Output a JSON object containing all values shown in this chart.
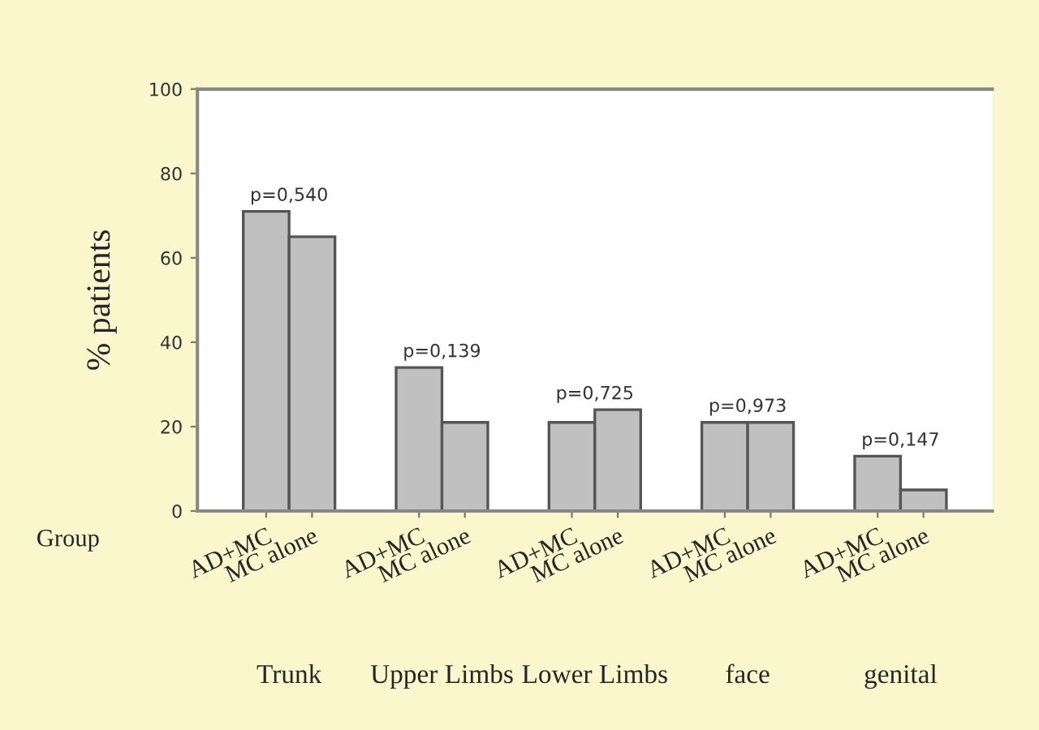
{
  "chart_data": {
    "type": "bar",
    "ylabel": "% patients",
    "categories": [
      "Trunk",
      "Upper Limbs",
      "Lower Limbs",
      "face",
      "genital"
    ],
    "series": [
      {
        "name": "AD+MC",
        "color": "#c0c0c0",
        "values": [
          71,
          34,
          21,
          21,
          13
        ]
      },
      {
        "name": "MC alone",
        "color": "#c0c0c0",
        "values": [
          65,
          21,
          24,
          21,
          5
        ]
      }
    ],
    "ylim": [
      0,
      100
    ],
    "yticks": [
      0,
      20,
      40,
      60,
      80,
      100
    ],
    "grid": false,
    "legend": false,
    "annotations": [
      "p=0,540",
      "p=0,139",
      "p=0,725",
      "p=0,973",
      "p=0,147",
      "Group"
    ]
  }
}
